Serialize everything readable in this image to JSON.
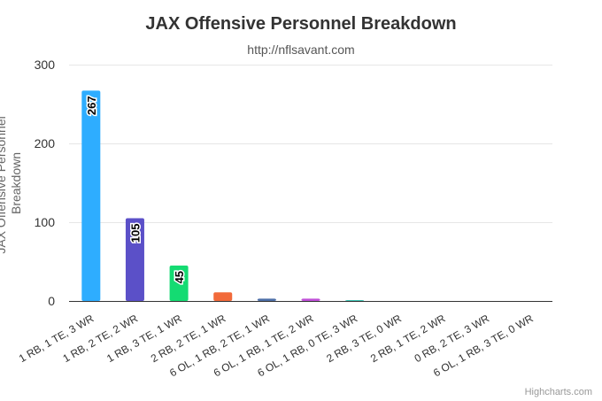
{
  "chart_data": {
    "type": "bar",
    "title": "JAX Offensive Personnel Breakdown",
    "subtitle": "http://nflsavant.com",
    "ylabel_lines": [
      "JAX Offensive Personnel",
      "Breakdown"
    ],
    "xlabel": "",
    "ylim": [
      0,
      300
    ],
    "yticks": [
      0,
      100,
      200,
      300
    ],
    "grid": true,
    "legend": "none",
    "categories": [
      "1 RB, 1 TE, 3 WR",
      "1 RB, 2 TE, 2 WR",
      "1 RB, 3 TE, 1 WR",
      "2 RB, 2 TE, 1 WR",
      "6 OL, 1 RB, 2 TE, 1 WR",
      "6 OL, 1 RB, 1 TE, 2 WR",
      "6 OL, 1 RB, 0 TE, 3 WR",
      "2 RB, 3 TE, 0 WR",
      "2 RB, 1 TE, 2 WR",
      "0 RB, 2 TE, 3 WR",
      "6 OL, 1 RB, 3 TE, 0 WR"
    ],
    "values": [
      267,
      105,
      45,
      11,
      3,
      3,
      1,
      0,
      0,
      0,
      0
    ],
    "data_labels": [
      "267",
      "105",
      "45",
      "",
      "",
      "",
      "",
      "",
      "",
      "",
      ""
    ],
    "colors": [
      "#2eadff",
      "#5b50c8",
      "#14db72",
      "#f26a3a",
      "#4d6fa8",
      "#c050d8",
      "#1fb8a6",
      "#2eadff",
      "#5b50c8",
      "#14db72",
      "#f26a3a"
    ],
    "credit": "Highcharts.com"
  }
}
